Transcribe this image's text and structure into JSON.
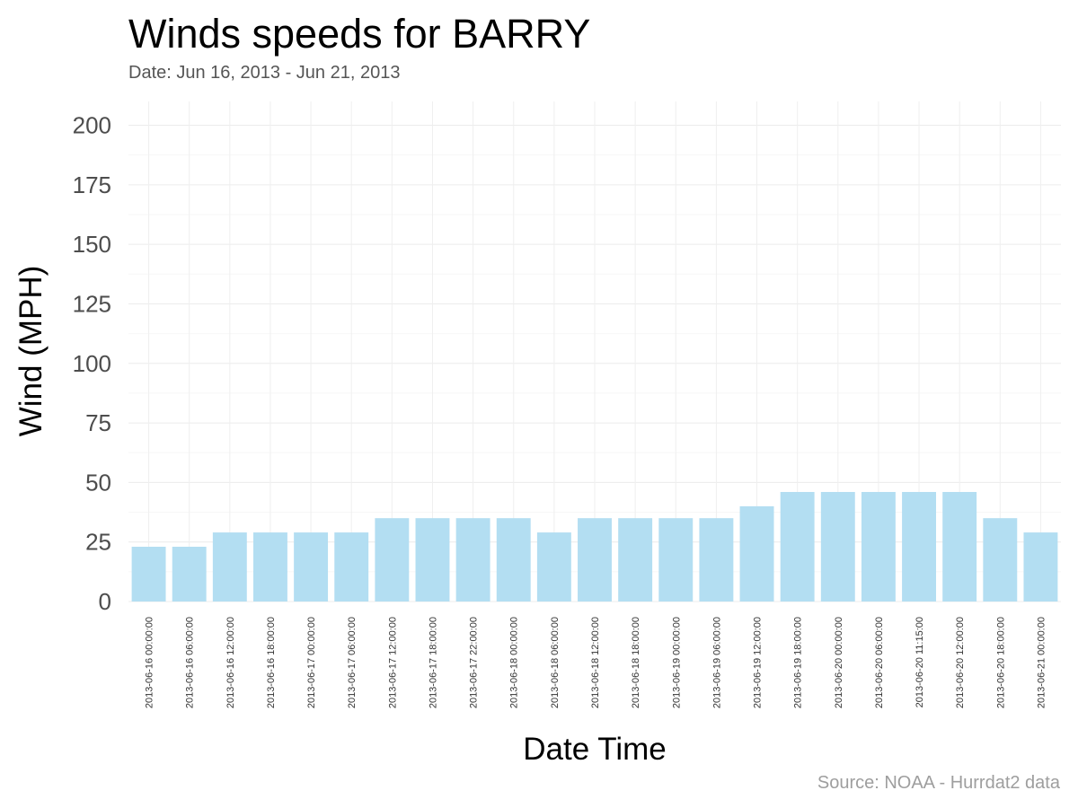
{
  "chart_data": {
    "type": "bar",
    "title": "Winds speeds for BARRY",
    "subtitle": "Date:  Jun 16, 2013 - Jun 21, 2013",
    "caption": "Source: NOAA - Hurrdat2 data",
    "xlabel": "Date Time",
    "ylabel": "Wind (MPH)",
    "ylim": [
      0,
      210
    ],
    "yticks": [
      "0",
      "25",
      "50",
      "75",
      "100",
      "125",
      "150",
      "175",
      "200"
    ],
    "grid": true,
    "bar_color": "#b3def2",
    "categories": [
      "2013-06-16 00:00:00",
      "2013-06-16 06:00:00",
      "2013-06-16 12:00:00",
      "2013-06-16 18:00:00",
      "2013-06-17 00:00:00",
      "2013-06-17 06:00:00",
      "2013-06-17 12:00:00",
      "2013-06-17 18:00:00",
      "2013-06-17 22:00:00",
      "2013-06-18 00:00:00",
      "2013-06-18 06:00:00",
      "2013-06-18 12:00:00",
      "2013-06-18 18:00:00",
      "2013-06-19 00:00:00",
      "2013-06-19 06:00:00",
      "2013-06-19 12:00:00",
      "2013-06-19 18:00:00",
      "2013-06-20 00:00:00",
      "2013-06-20 06:00:00",
      "2013-06-20 11:15:00",
      "2013-06-20 12:00:00",
      "2013-06-20 18:00:00",
      "2013-06-21 00:00:00"
    ],
    "values": [
      23,
      23,
      29,
      29,
      29,
      29,
      35,
      35,
      35,
      35,
      29,
      35,
      35,
      35,
      35,
      40,
      46,
      46,
      46,
      46,
      46,
      35,
      29
    ]
  }
}
